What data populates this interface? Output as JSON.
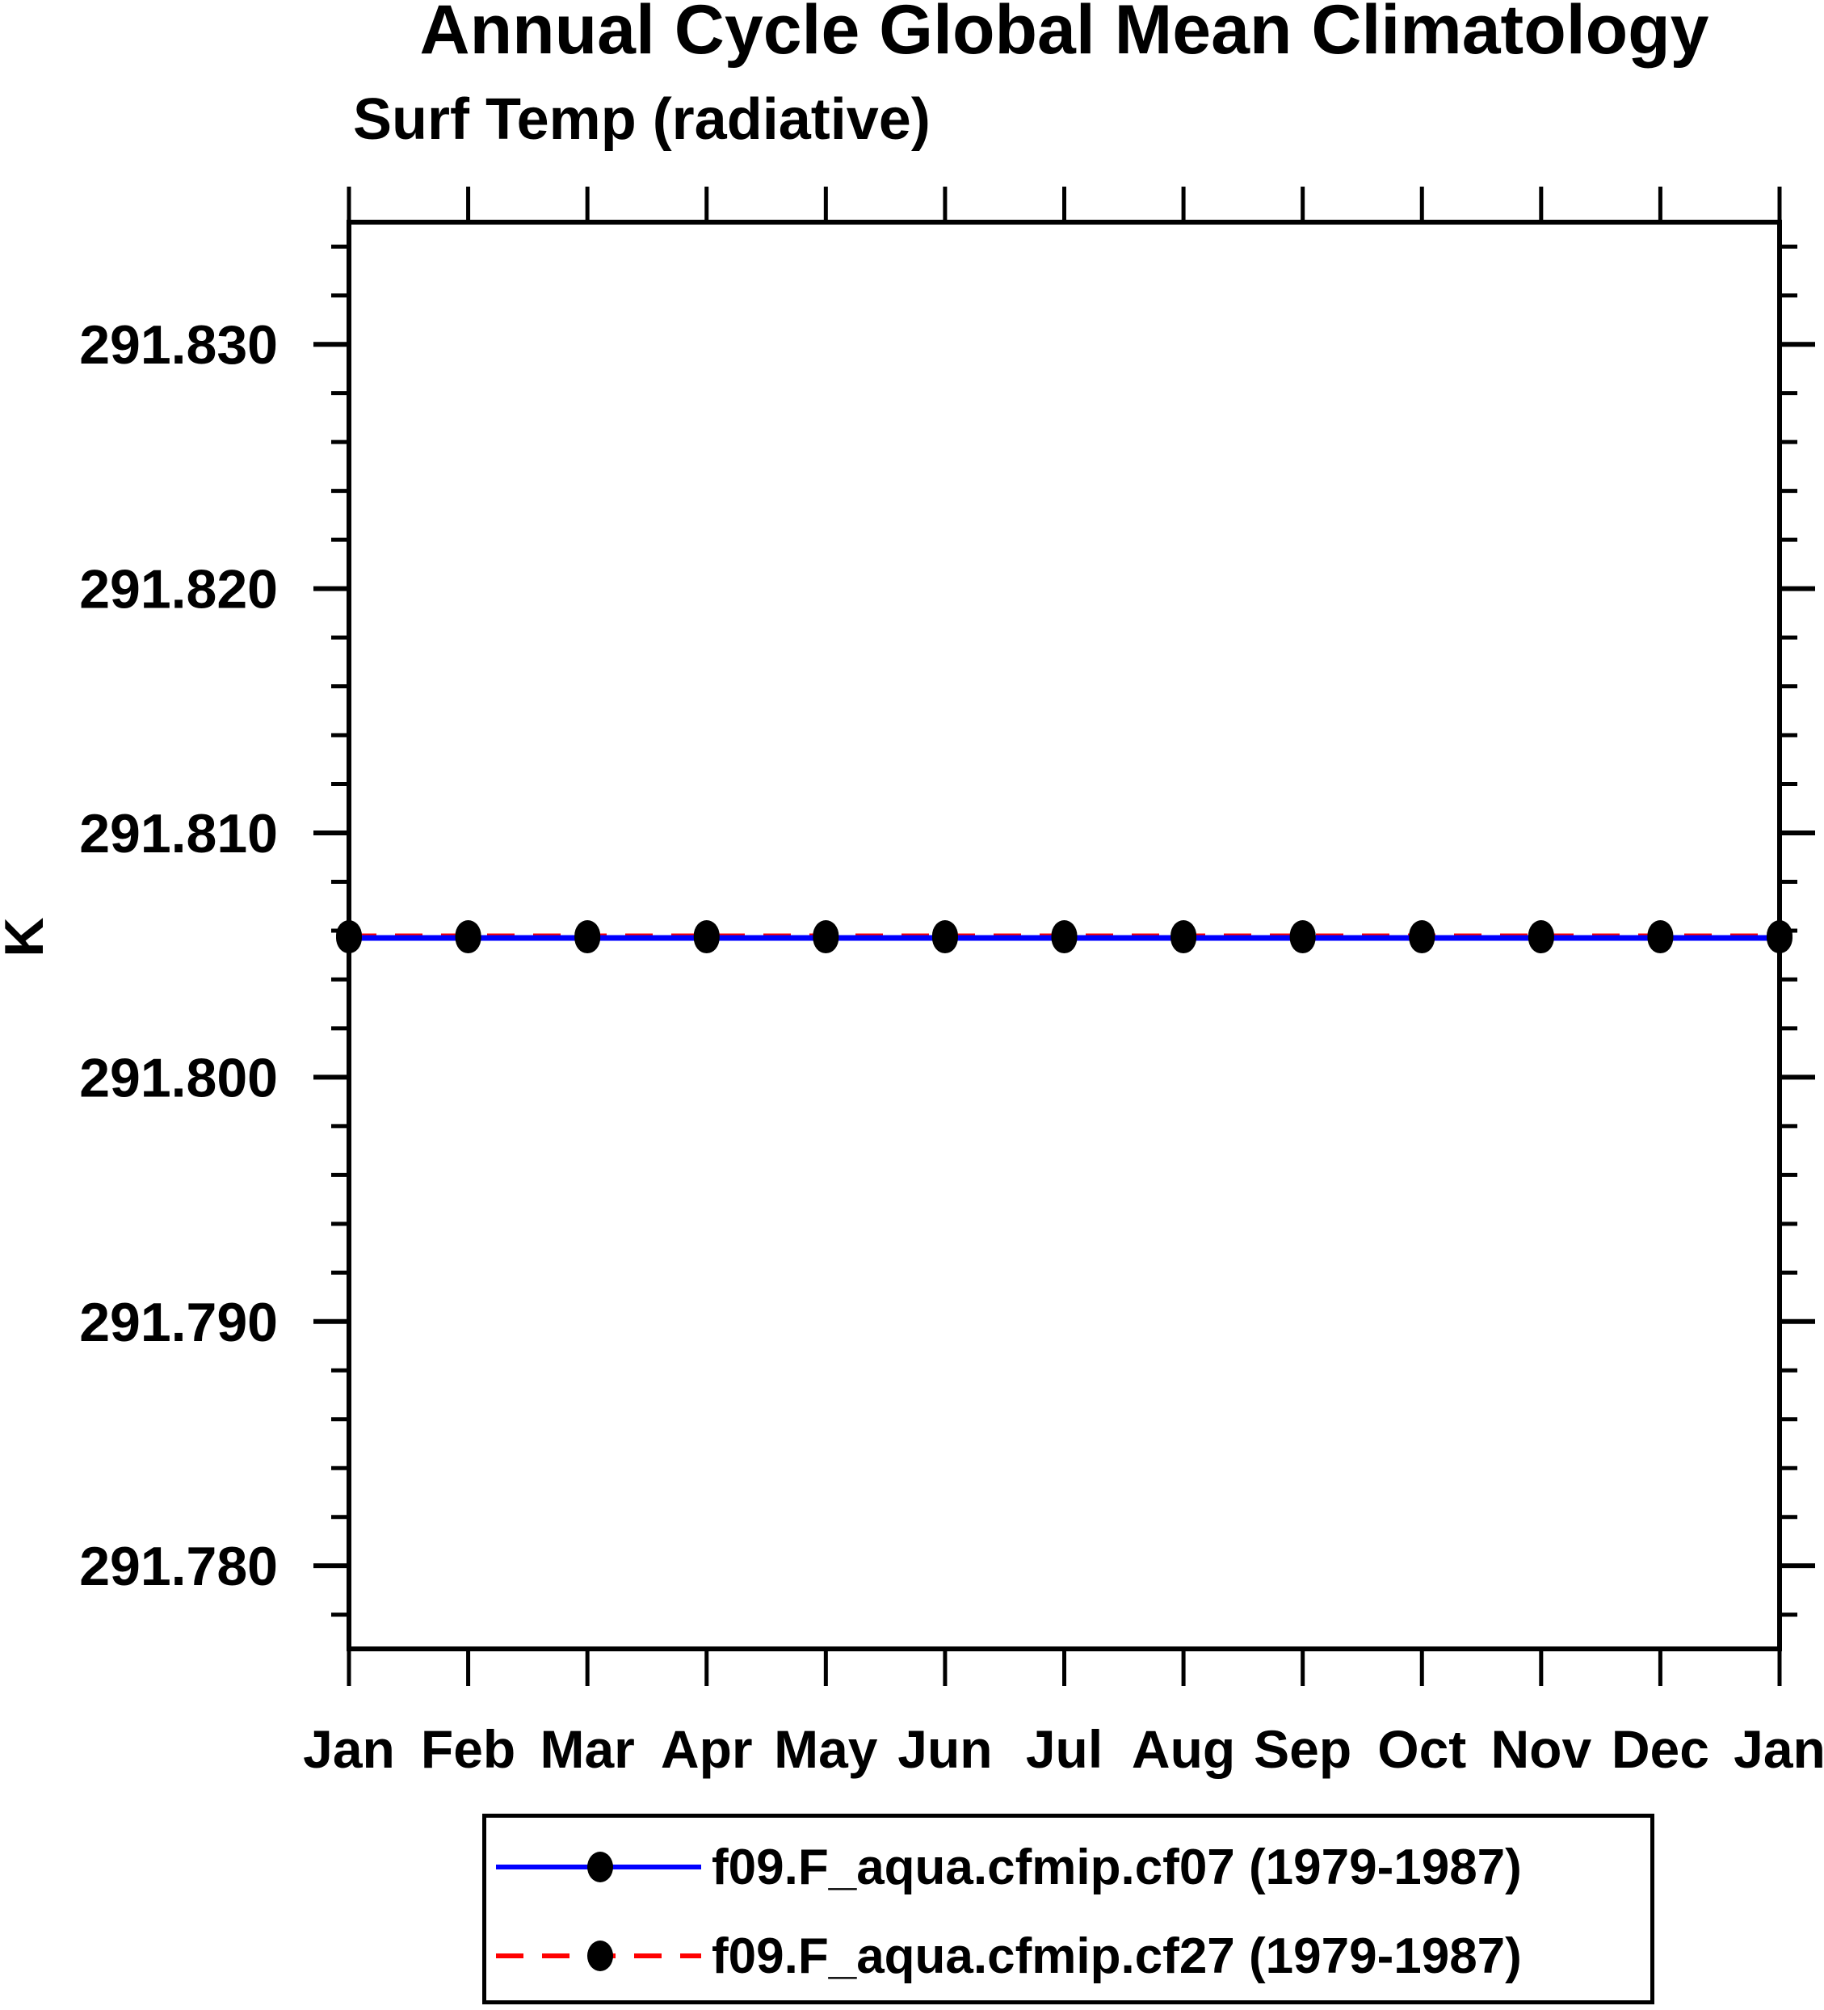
{
  "chart_data": {
    "type": "line",
    "title": "Annual Cycle Global Mean Climatology",
    "subtitle": "Surf Temp (radiative)",
    "ylabel": "K",
    "x_categories": [
      "Jan",
      "Feb",
      "Mar",
      "Apr",
      "May",
      "Jun",
      "Jul",
      "Aug",
      "Sep",
      "Oct",
      "Nov",
      "Dec",
      "Jan"
    ],
    "y_ticks": [
      291.78,
      291.79,
      291.8,
      291.81,
      291.82,
      291.83
    ],
    "y_tick_labels": [
      "291.780",
      "291.790",
      "291.800",
      "291.810",
      "291.820",
      "291.830"
    ],
    "y_minor_step": 0.002,
    "y_minor_range": [
      291.778,
      291.834
    ],
    "ylim": [
      291.7766,
      291.835
    ],
    "grid": false,
    "legend_position": "bottom",
    "frame_color": "#000000",
    "marker_color": "#000000",
    "series": [
      {
        "name": "f09.F_aqua.cfmip.cf07 (1979-1987)",
        "color": "#0000ff",
        "style": "solid",
        "marker": "black-dot",
        "values": [
          291.8057,
          291.8057,
          291.8057,
          291.8057,
          291.8057,
          291.8057,
          291.8057,
          291.8057,
          291.8057,
          291.8057,
          291.8057,
          291.8057,
          291.8057
        ]
      },
      {
        "name": "f09.F_aqua.cfmip.cf27 (1979-1987)",
        "color": "#ff0000",
        "style": "dashed",
        "marker": "black-dot",
        "values": [
          291.8058,
          291.8058,
          291.8058,
          291.8058,
          291.8058,
          291.8058,
          291.8058,
          291.8058,
          291.8058,
          291.8058,
          291.8058,
          291.8058,
          291.8058
        ]
      }
    ]
  }
}
